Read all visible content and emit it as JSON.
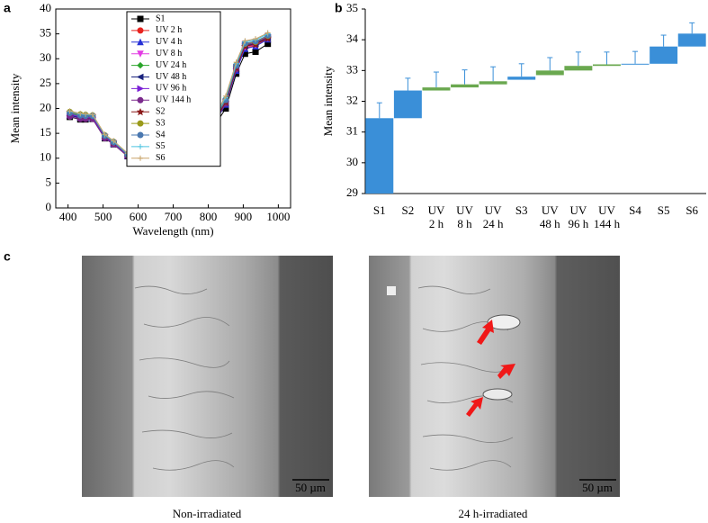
{
  "panel_labels": [
    "a",
    "b",
    "c"
  ],
  "images": [
    {
      "caption": "Non-irradiated",
      "scale_bar": "50 µm"
    },
    {
      "caption": "24 h-irradiated",
      "scale_bar": "50 µm"
    }
  ],
  "chart_data": [
    {
      "type": "line",
      "x_label": "Wavelength (nm)",
      "y_label": "Mean intensity",
      "xlim": [
        365,
        1035
      ],
      "xticks": [
        400,
        500,
        600,
        700,
        800,
        900,
        1000
      ],
      "ylim": [
        0,
        40
      ],
      "yticks": [
        0,
        5,
        10,
        15,
        20,
        25,
        30,
        35,
        40
      ],
      "x": [
        405,
        435,
        450,
        470,
        505,
        530,
        570,
        600,
        630,
        650,
        670,
        700,
        780,
        850,
        880,
        905,
        935,
        970
      ],
      "series": [
        {
          "name": "S1",
          "color": "#000000",
          "marker": "square",
          "values": [
            18.3,
            17.8,
            17.8,
            17.9,
            14.0,
            12.8,
            10.4,
            9.8,
            9.6,
            9.5,
            9.5,
            9.6,
            12.4,
            20.0,
            27.0,
            31.0,
            31.4,
            33.0
          ]
        },
        {
          "name": "UV 2 h",
          "color": "#e8231f",
          "marker": "circle",
          "values": [
            18.8,
            18.3,
            18.2,
            18.2,
            14.3,
            13.0,
            10.6,
            9.9,
            9.8,
            9.7,
            9.7,
            9.8,
            12.9,
            21.0,
            27.8,
            32.2,
            32.6,
            34.0
          ]
        },
        {
          "name": "UV 4 h",
          "color": "#2630d6",
          "marker": "triangle",
          "values": [
            18.7,
            18.2,
            18.1,
            18.1,
            14.2,
            12.9,
            10.5,
            9.8,
            9.7,
            9.6,
            9.6,
            9.7,
            12.8,
            20.8,
            27.6,
            32.0,
            32.5,
            33.9
          ]
        },
        {
          "name": "UV 8 h",
          "color": "#e33ce3",
          "marker": "down",
          "values": [
            18.9,
            18.4,
            18.3,
            18.3,
            14.3,
            13.0,
            10.6,
            9.9,
            9.8,
            9.7,
            9.7,
            9.9,
            13.0,
            21.2,
            28.0,
            32.4,
            32.8,
            34.2
          ]
        },
        {
          "name": "UV 24 h",
          "color": "#2ba52b",
          "marker": "diamond",
          "values": [
            19.0,
            18.5,
            18.4,
            18.4,
            14.4,
            13.1,
            10.7,
            10.0,
            9.9,
            9.8,
            9.8,
            10.0,
            13.2,
            21.5,
            28.3,
            32.7,
            33.0,
            34.4
          ]
        },
        {
          "name": "UV 48 h",
          "color": "#1a237e",
          "marker": "left",
          "values": [
            18.6,
            18.1,
            18.0,
            18.0,
            14.1,
            12.9,
            10.5,
            9.8,
            9.7,
            9.6,
            9.6,
            9.8,
            12.9,
            21.1,
            28.0,
            32.6,
            33.0,
            34.3
          ]
        },
        {
          "name": "UV 96 h",
          "color": "#7b1fd6",
          "marker": "right",
          "values": [
            18.8,
            18.3,
            18.2,
            18.2,
            14.3,
            13.0,
            10.6,
            9.9,
            9.8,
            9.7,
            9.7,
            9.9,
            13.1,
            21.4,
            28.3,
            32.9,
            33.3,
            34.5
          ]
        },
        {
          "name": "UV 144 h",
          "color": "#7b2a8c",
          "marker": "circle",
          "values": [
            18.4,
            17.9,
            17.9,
            17.9,
            14.0,
            12.8,
            10.4,
            9.7,
            9.6,
            9.5,
            9.5,
            9.7,
            12.8,
            21.0,
            27.9,
            32.8,
            33.2,
            34.4
          ]
        },
        {
          "name": "S2",
          "color": "#8b1a1a",
          "marker": "star",
          "values": [
            19.2,
            18.7,
            18.6,
            18.5,
            14.5,
            13.2,
            10.7,
            10.0,
            9.9,
            9.8,
            9.8,
            10.0,
            13.1,
            21.3,
            28.2,
            32.5,
            32.9,
            34.1
          ]
        },
        {
          "name": "S3",
          "color": "#9a9a1a",
          "marker": "circle",
          "values": [
            19.3,
            18.8,
            18.7,
            18.6,
            14.6,
            13.3,
            10.8,
            10.1,
            10.0,
            9.9,
            9.9,
            10.1,
            13.4,
            21.8,
            28.7,
            33.0,
            33.4,
            34.6
          ]
        },
        {
          "name": "S4",
          "color": "#4a78b0",
          "marker": "circle",
          "values": [
            19.1,
            18.6,
            18.5,
            18.5,
            14.5,
            13.2,
            10.7,
            10.0,
            9.9,
            9.8,
            9.8,
            10.0,
            13.3,
            21.7,
            28.6,
            33.1,
            33.5,
            34.7
          ]
        },
        {
          "name": "S5",
          "color": "#4cc3e0",
          "marker": "plus",
          "values": [
            19.4,
            18.9,
            18.8,
            18.7,
            14.7,
            13.4,
            10.9,
            10.2,
            10.1,
            10.0,
            10.0,
            10.2,
            13.6,
            22.2,
            29.0,
            33.4,
            33.8,
            35.0
          ]
        },
        {
          "name": "S6",
          "color": "#c9a46a",
          "marker": "plus",
          "values": [
            19.5,
            19.0,
            18.9,
            18.8,
            14.8,
            13.5,
            11.0,
            10.3,
            10.2,
            10.1,
            10.1,
            10.3,
            13.8,
            22.5,
            29.3,
            33.6,
            34.0,
            35.2
          ]
        }
      ]
    },
    {
      "type": "bar",
      "y_label": "Mean intensity",
      "ylim": [
        29,
        35
      ],
      "yticks": [
        29,
        30,
        31,
        32,
        33,
        34,
        35
      ],
      "categories": [
        [
          "S1"
        ],
        [
          "S2"
        ],
        [
          "UV",
          "2 h"
        ],
        [
          "UV",
          "8 h"
        ],
        [
          "UV",
          "24 h"
        ],
        [
          "S3"
        ],
        [
          "UV",
          "48 h"
        ],
        [
          "UV",
          "96 h"
        ],
        [
          "UV",
          "144 h"
        ],
        [
          "S4"
        ],
        [
          "S5"
        ],
        [
          "S6"
        ]
      ],
      "bases": [
        29,
        31.45,
        32.35,
        32.45,
        32.55,
        32.7,
        32.85,
        33.0,
        33.15,
        33.2,
        33.22,
        33.78
      ],
      "values": [
        31.45,
        32.35,
        32.45,
        32.55,
        32.65,
        32.8,
        33.0,
        33.15,
        33.2,
        33.22,
        33.78,
        34.2
      ],
      "errors": [
        0.5,
        0.4,
        0.5,
        0.47,
        0.47,
        0.42,
        0.42,
        0.45,
        0.4,
        0.4,
        0.37,
        0.35
      ],
      "colors": [
        "#3a8fd8",
        "#3a8fd8",
        "#6aa84f",
        "#6aa84f",
        "#6aa84f",
        "#3a8fd8",
        "#6aa84f",
        "#6aa84f",
        "#6aa84f",
        "#3a8fd8",
        "#3a8fd8",
        "#3a8fd8"
      ]
    }
  ]
}
